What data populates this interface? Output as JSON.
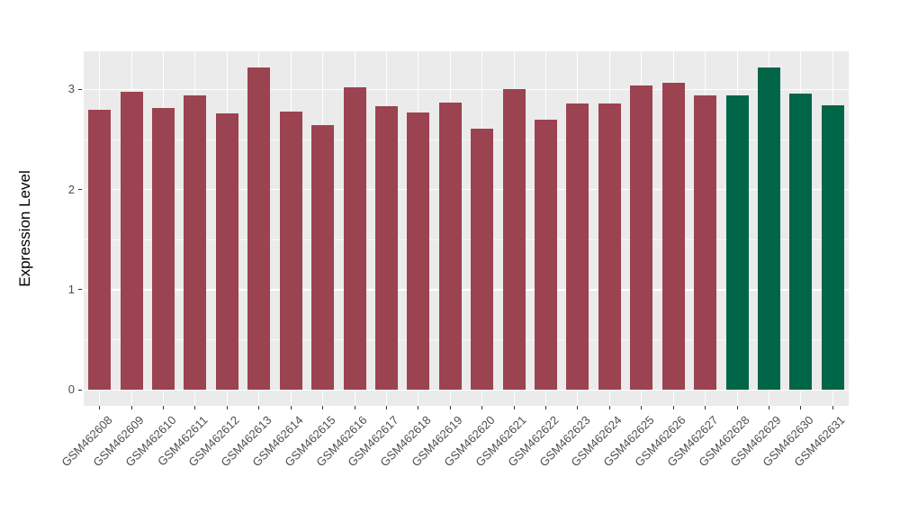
{
  "figure": {
    "background": "#ffffff",
    "panel_background": "#EBEBEB",
    "gridline_color": "#FFFFFF",
    "axis_text_color": "#4D4D4D"
  },
  "chart_data": {
    "type": "bar",
    "title": "",
    "xlabel": "",
    "ylabel": "Expression Level",
    "legend_position": "none",
    "grid": "on",
    "yticks": [
      0,
      1,
      2,
      3
    ],
    "minor_gridlines": [
      0.5,
      1.5,
      2.5
    ],
    "ylim": [
      -0.16,
      3.38
    ],
    "categories": [
      "GSM462608",
      "GSM462609",
      "GSM462610",
      "GSM462611",
      "GSM462612",
      "GSM462613",
      "GSM462614",
      "GSM462615",
      "GSM462616",
      "GSM462617",
      "GSM462618",
      "GSM462619",
      "GSM462620",
      "GSM462621",
      "GSM462622",
      "GSM462623",
      "GSM462624",
      "GSM462625",
      "GSM462626",
      "GSM462627",
      "GSM462628",
      "GSM462629",
      "GSM462630",
      "GSM462631"
    ],
    "values": [
      2.8,
      2.98,
      2.81,
      2.94,
      2.76,
      3.22,
      2.78,
      2.64,
      3.02,
      2.83,
      2.77,
      2.87,
      2.61,
      3.0,
      2.7,
      2.86,
      2.86,
      3.04,
      3.07,
      2.94,
      2.94,
      3.22,
      2.96,
      2.84
    ],
    "bar_colors": [
      "#9B4350",
      "#9B4350",
      "#9B4350",
      "#9B4350",
      "#9B4350",
      "#9B4350",
      "#9B4350",
      "#9B4350",
      "#9B4350",
      "#9B4350",
      "#9B4350",
      "#9B4350",
      "#9B4350",
      "#9B4350",
      "#9B4350",
      "#9B4350",
      "#9B4350",
      "#9B4350",
      "#9B4350",
      "#9B4350",
      "#006647",
      "#006647",
      "#006647",
      "#006647"
    ],
    "color_groups": {
      "maroon": "#9B4350",
      "green": "#006647"
    }
  }
}
